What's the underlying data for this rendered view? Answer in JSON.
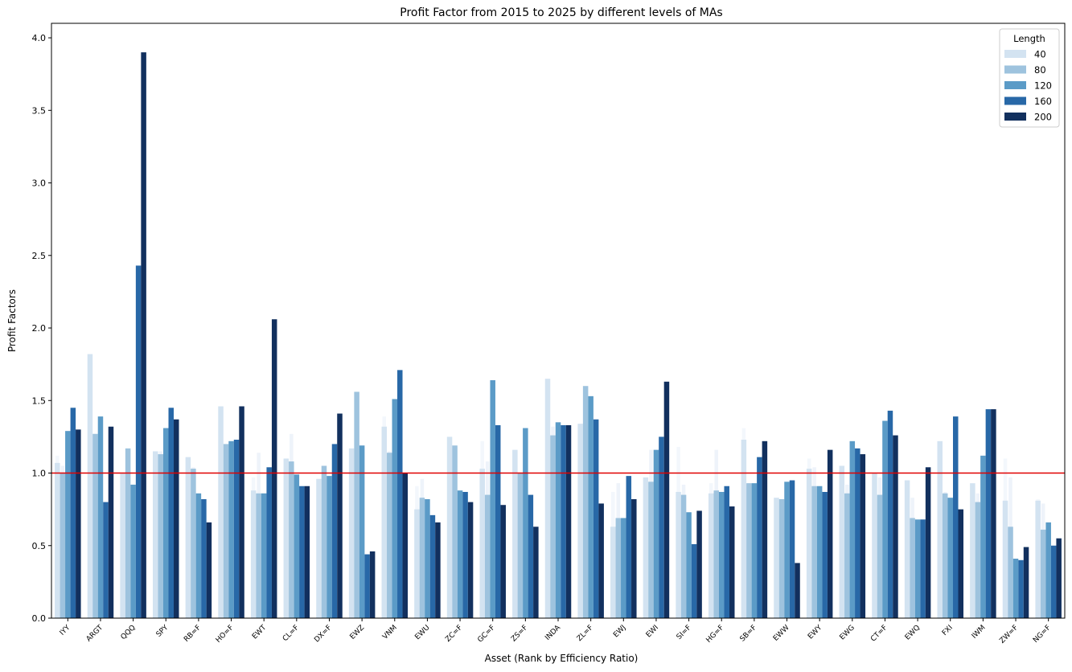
{
  "chart_data": {
    "type": "bar",
    "title": "Profit Factor from 2015 to 2025 by different levels of MAs",
    "xlabel": "Asset (Rank by Efficiency Ratio)",
    "ylabel": "Profit Factors",
    "ylim": [
      0,
      4.1
    ],
    "yticks": [
      "0.0",
      "0.5",
      "1.0",
      "1.5",
      "2.0",
      "2.5",
      "3.0",
      "3.5",
      "4.0"
    ],
    "reference_line": {
      "y": 1.0,
      "color": "#e00000"
    },
    "grid": false,
    "legend": {
      "title": "Length",
      "placement": "top-right"
    },
    "categories": [
      "IYY",
      "ARGT",
      "QQQ",
      "SPY",
      "RB=F",
      "HO=F",
      "EWT",
      "CL=F",
      "DX=F",
      "EWZ",
      "VNM",
      "EWU",
      "ZC=F",
      "GC=F",
      "ZS=F",
      "INDA",
      "ZL=F",
      "EWJ",
      "EWI",
      "SI=F",
      "HG=F",
      "SB=F",
      "EWW",
      "EWY",
      "EWG",
      "CT=F",
      "EWQ",
      "FXI",
      "IWM",
      "ZW=F",
      "NG=F"
    ],
    "faint_series": [
      [
        1.12,
        1.1,
        0.72,
        0.88,
        0.97,
        1.33,
        0.97,
        1.1,
        0.87,
        0.95,
        1.39,
        0.91,
        0.84,
        1.22,
        0.79,
        1.21,
        0.86,
        0.87,
        0.9,
        1.18,
        0.93,
        1.31,
        0.76,
        1.1,
        0.87,
        0.94,
        0.92,
        0.89,
        0.83,
        1.1,
        0.82
      ],
      [
        1.05,
        1.27,
        1.16,
        1.15,
        1.04,
        1.19,
        1.14,
        1.27,
        0.93,
        0.99,
        1.15,
        0.96,
        0.86,
        1.08,
        0.8,
        1.32,
        1.08,
        0.93,
        1.16,
        0.92,
        1.16,
        0.93,
        0.79,
        1.04,
        0.92,
        0.97,
        0.83,
        0.87,
        0.86,
        0.97,
        0.79
      ]
    ],
    "series": [
      {
        "name": "40",
        "color": "#d3e3f1",
        "values": [
          1.07,
          1.82,
          1.0,
          1.15,
          1.11,
          1.46,
          0.88,
          1.1,
          0.96,
          1.17,
          1.32,
          0.75,
          1.25,
          1.03,
          1.16,
          1.65,
          1.34,
          0.63,
          0.97,
          0.87,
          0.86,
          1.23,
          0.83,
          1.03,
          1.05,
          1.0,
          0.95,
          1.22,
          0.93,
          0.81,
          0.81
        ]
      },
      {
        "name": "80",
        "color": "#9ec3de",
        "values": [
          1.0,
          1.27,
          1.17,
          1.13,
          1.03,
          1.2,
          0.86,
          1.08,
          1.05,
          1.56,
          1.14,
          0.83,
          1.19,
          0.85,
          1.0,
          1.26,
          1.6,
          0.69,
          0.94,
          0.85,
          0.88,
          0.93,
          0.82,
          0.91,
          0.86,
          0.85,
          0.69,
          0.86,
          0.8,
          0.63,
          0.61
        ]
      },
      {
        "name": "120",
        "color": "#5b9bc7",
        "values": [
          1.29,
          1.39,
          0.92,
          1.31,
          0.86,
          1.22,
          0.86,
          0.99,
          0.98,
          1.19,
          1.51,
          0.82,
          0.88,
          1.64,
          1.31,
          1.35,
          1.53,
          0.69,
          1.16,
          0.73,
          0.87,
          0.93,
          0.94,
          0.91,
          1.22,
          1.36,
          0.68,
          0.83,
          1.12,
          0.41,
          0.66
        ]
      },
      {
        "name": "160",
        "color": "#2868a7",
        "values": [
          1.45,
          0.8,
          2.43,
          1.45,
          0.82,
          1.23,
          1.04,
          0.91,
          1.2,
          0.44,
          1.71,
          0.71,
          0.87,
          1.33,
          0.85,
          1.33,
          1.37,
          0.98,
          1.25,
          0.51,
          0.91,
          1.11,
          0.95,
          0.87,
          1.17,
          1.43,
          0.68,
          1.39,
          1.44,
          0.4,
          0.5
        ]
      },
      {
        "name": "200",
        "color": "#12305e",
        "values": [
          1.3,
          1.32,
          3.9,
          1.37,
          0.66,
          1.46,
          2.06,
          0.91,
          1.41,
          0.46,
          1.0,
          0.66,
          0.8,
          0.78,
          0.63,
          1.33,
          0.79,
          0.82,
          1.63,
          0.74,
          0.77,
          1.22,
          0.38,
          1.16,
          1.13,
          1.26,
          1.04,
          0.75,
          1.44,
          0.49,
          0.55
        ]
      }
    ]
  }
}
